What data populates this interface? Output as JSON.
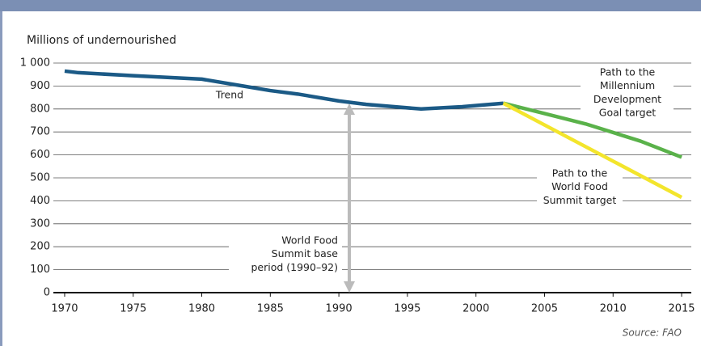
{
  "chart_data": {
    "type": "line",
    "ylabel": "Millions of undernourished",
    "xlim": [
      1969,
      2016
    ],
    "ylim": [
      0,
      1000
    ],
    "xticks": [
      1970,
      1975,
      1980,
      1985,
      1990,
      1995,
      2000,
      2005,
      2010,
      2015
    ],
    "yticks": [
      0,
      100,
      200,
      300,
      400,
      500,
      600,
      700,
      800,
      900,
      {
        "value": 1000,
        "label": "1 000"
      }
    ],
    "grid": true,
    "series": [
      {
        "name": "Trend",
        "color": "#1b5a86",
        "x": [
          1970,
          1971,
          1975,
          1980,
          1983,
          1985,
          1987,
          1990,
          1992,
          1996,
          1999,
          2002
        ],
        "values": [
          965,
          958,
          945,
          930,
          900,
          880,
          865,
          835,
          820,
          800,
          810,
          825
        ]
      },
      {
        "name": [
          "Path to the",
          "Millennium",
          "Development",
          "Goal target"
        ],
        "color": "#5ab24a",
        "x": [
          2002,
          2005,
          2008,
          2012,
          2015
        ],
        "values": [
          825,
          780,
          735,
          660,
          590
        ]
      },
      {
        "name": [
          "Path to the",
          "World Food",
          "Summit target"
        ],
        "color": "#f3e52c",
        "x": [
          2002,
          2015
        ],
        "values": [
          825,
          415
        ]
      }
    ],
    "annotations": [
      [
        "World Food",
        "Summit base",
        "period (1990–92)"
      ]
    ],
    "source": "Source: FAO"
  }
}
